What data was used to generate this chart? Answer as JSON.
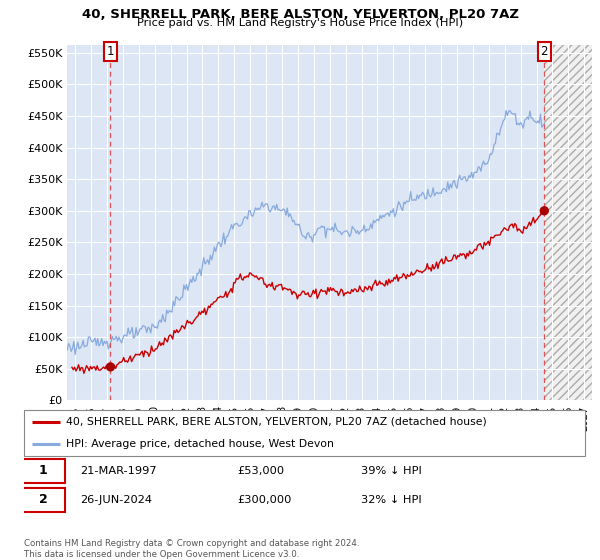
{
  "title": "40, SHERRELL PARK, BERE ALSTON, YELVERTON, PL20 7AZ",
  "subtitle": "Price paid vs. HM Land Registry's House Price Index (HPI)",
  "ylim": [
    0,
    562500
  ],
  "yticks": [
    0,
    50000,
    100000,
    150000,
    200000,
    250000,
    300000,
    350000,
    400000,
    450000,
    500000,
    550000
  ],
  "ytick_labels": [
    "£0",
    "£50K",
    "£100K",
    "£150K",
    "£200K",
    "£250K",
    "£300K",
    "£350K",
    "£400K",
    "£450K",
    "£500K",
    "£550K"
  ],
  "xlim_start": 1994.5,
  "xlim_end": 2027.5,
  "xticks": [
    1995,
    1996,
    1997,
    1998,
    1999,
    2000,
    2001,
    2002,
    2003,
    2004,
    2005,
    2006,
    2007,
    2008,
    2009,
    2010,
    2011,
    2012,
    2013,
    2014,
    2015,
    2016,
    2017,
    2018,
    2019,
    2020,
    2021,
    2022,
    2023,
    2024,
    2025,
    2026,
    2027
  ],
  "sale1_x": 1997.22,
  "sale1_y": 53000,
  "sale1_label": "1",
  "sale2_x": 2024.49,
  "sale2_y": 300000,
  "sale2_label": "2",
  "plot_bg": "#dce6f5",
  "hatch_bg": "#e8e8e8",
  "grid_color": "#ffffff",
  "red_line_color": "#cc0000",
  "blue_line_color": "#88aadd",
  "sale_dot_color": "#aa0000",
  "dashed_vline_color": "#dd5555",
  "legend_label1": "40, SHERRELL PARK, BERE ALSTON, YELVERTON, PL20 7AZ (detached house)",
  "legend_label2": "HPI: Average price, detached house, West Devon",
  "table_row1": [
    "1",
    "21-MAR-1997",
    "£53,000",
    "39% ↓ HPI"
  ],
  "table_row2": [
    "2",
    "26-JUN-2024",
    "£300,000",
    "32% ↓ HPI"
  ],
  "footnote": "Contains HM Land Registry data © Crown copyright and database right 2024.\nThis data is licensed under the Open Government Licence v3.0."
}
